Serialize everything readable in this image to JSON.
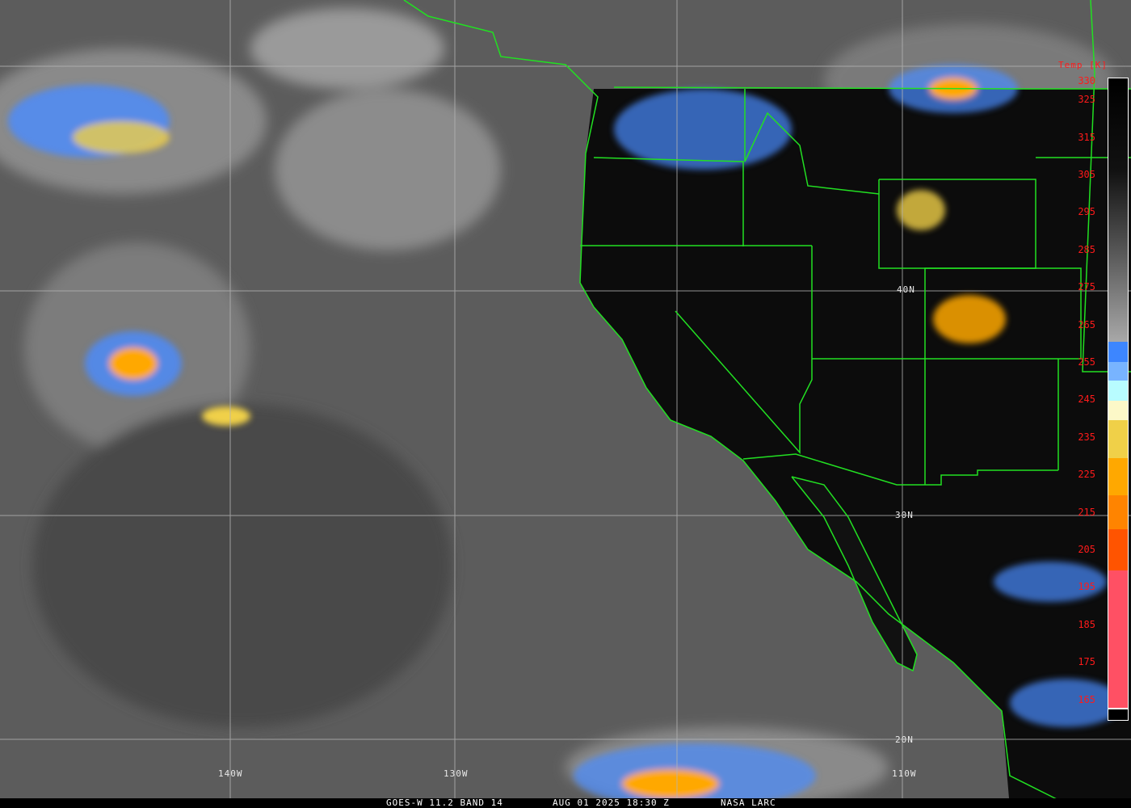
{
  "footer": {
    "satellite_band": "GOES-W 11.2 BAND 14",
    "datetime": "AUG 01 2025 18:30 Z",
    "credit": "NASA LARC"
  },
  "grid_labels": {
    "lon_140w": "140W",
    "lon_130w": "130W",
    "lon_110w": "110W",
    "lat_40n": "40N",
    "lat_30n": "30N",
    "lat_20n": "20N"
  },
  "colorbar": {
    "title": "Temp [K]",
    "ticks": [
      "330",
      "325",
      "315",
      "305",
      "295",
      "285",
      "275",
      "265",
      "255",
      "245",
      "235",
      "225",
      "215",
      "205",
      "195",
      "185",
      "175",
      "165"
    ],
    "colors": {
      "grayscale_top": "#000000",
      "grayscale_bottom": "#a8a8a8",
      "blue": "#3d86ff",
      "mid_blue": "#78b4ff",
      "light_cyan": "#b8fcff",
      "pale_yellow": "#fcf8c8",
      "yellow": "#f0d048",
      "orange": "#ffa800",
      "dark_orange": "#ff8400",
      "red_orange": "#ff5400",
      "pink": "#ff5064"
    }
  },
  "map_colors": {
    "boundaries": "#22e022",
    "grid": "#b4b4b4"
  }
}
